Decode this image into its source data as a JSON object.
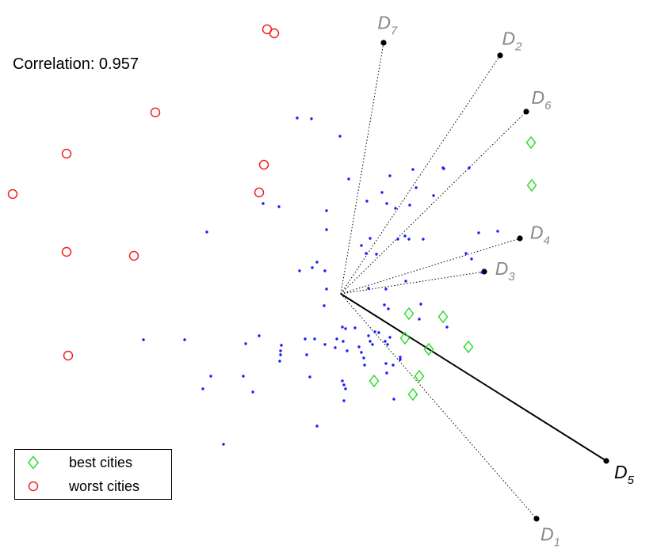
{
  "correlation_text": "Correlation: 0.957",
  "legend": {
    "best_label": "best cities",
    "worst_label": "worst cities"
  },
  "colors": {
    "points": "#1a1aff",
    "best": "#33dd33",
    "worst": "#ee2222",
    "axis_text": "#888888",
    "highlight_axis": "#000000"
  },
  "chart_data": {
    "type": "scatter",
    "description_note": "",
    "annotation": "Correlation: 0.957",
    "origin": [
      0,
      0
    ],
    "axes": [
      {
        "label": "D",
        "sub": "1",
        "end": [
          247,
          -284
        ],
        "highlight": false
      },
      {
        "label": "D",
        "sub": "2",
        "end": [
          201,
          301
        ],
        "highlight": false
      },
      {
        "label": "D",
        "sub": "3",
        "end": [
          181,
          28
        ],
        "highlight": false
      },
      {
        "label": "D",
        "sub": "4",
        "end": [
          226,
          70
        ],
        "highlight": false
      },
      {
        "label": "D",
        "sub": "5",
        "end": [
          335,
          -211
        ],
        "highlight": true
      },
      {
        "label": "D",
        "sub": "6",
        "end": [
          234,
          230
        ],
        "highlight": false
      },
      {
        "label": "D",
        "sub": "7",
        "end": [
          54,
          317
        ],
        "highlight": false
      }
    ],
    "series": [
      {
        "name": "best cities",
        "marker": "diamond",
        "points": [
          [
            240,
            191
          ],
          [
            241,
            137
          ],
          [
            86,
            -25
          ],
          [
            129,
            -29
          ],
          [
            81,
            -56
          ],
          [
            111,
            -70
          ],
          [
            161,
            -67
          ],
          [
            99,
            -104
          ],
          [
            42,
            -110
          ],
          [
            91,
            -127
          ]
        ]
      },
      {
        "name": "worst cities",
        "marker": "circle",
        "points": [
          [
            -93,
            334
          ],
          [
            -84,
            329
          ],
          [
            -234,
            229
          ],
          [
            -346,
            177
          ],
          [
            -97,
            163
          ],
          [
            -103,
            128
          ],
          [
            -414,
            126
          ],
          [
            -346,
            53
          ],
          [
            -261,
            48
          ],
          [
            -344,
            -78
          ]
        ]
      },
      {
        "name": "",
        "marker": "dot",
        "points": [
          [
            -55,
            222
          ],
          [
            -37,
            221
          ],
          [
            -1,
            199
          ],
          [
            10,
            145
          ],
          [
            62,
            149
          ],
          [
            91,
            157
          ],
          [
            129,
            159
          ],
          [
            130,
            158
          ],
          [
            162,
            159
          ],
          [
            -98,
            114
          ],
          [
            -78,
            110
          ],
          [
            -18,
            105
          ],
          [
            33,
            117
          ],
          [
            52,
            128
          ],
          [
            58,
            114
          ],
          [
            69,
            108
          ],
          [
            87,
            112
          ],
          [
            95,
            134
          ],
          [
            117,
            124
          ],
          [
            -169,
            78
          ],
          [
            -18,
            81
          ],
          [
            26,
            61
          ],
          [
            37,
            70
          ],
          [
            72,
            69
          ],
          [
            81,
            73
          ],
          [
            86,
            69
          ],
          [
            32,
            51
          ],
          [
            45,
            50
          ],
          [
            -30,
            40
          ],
          [
            -36,
            33
          ],
          [
            -20,
            29
          ],
          [
            -52,
            29
          ],
          [
            -18,
            6
          ],
          [
            -21,
            -15
          ],
          [
            104,
            69
          ],
          [
            174,
            77
          ],
          [
            198,
            79
          ],
          [
            165,
            44
          ],
          [
            178,
            27
          ],
          [
            158,
            51
          ],
          [
            82,
            16
          ],
          [
            35,
            7
          ],
          [
            57,
            6
          ],
          [
            55,
            -14
          ],
          [
            60,
            -19
          ],
          [
            101,
            -13
          ],
          [
            99,
            -32
          ],
          [
            134,
            -42
          ],
          [
            -249,
            -58
          ],
          [
            -197,
            -58
          ],
          [
            -33,
            -57
          ],
          [
            -45,
            -57
          ],
          [
            -20,
            -64
          ],
          [
            -5,
            -57
          ],
          [
            -7,
            -68
          ],
          [
            3,
            -60
          ],
          [
            2,
            -42
          ],
          [
            6,
            -44
          ],
          [
            8,
            -72
          ],
          [
            18,
            -43
          ],
          [
            23,
            -67
          ],
          [
            26,
            -74
          ],
          [
            29,
            -81
          ],
          [
            30,
            -90
          ],
          [
            35,
            -53
          ],
          [
            37,
            -60
          ],
          [
            40,
            -64
          ],
          [
            43,
            -48
          ],
          [
            48,
            -49
          ],
          [
            56,
            -60
          ],
          [
            57,
            -88
          ],
          [
            58,
            -100
          ],
          [
            59,
            -64
          ],
          [
            62,
            -55
          ],
          [
            66,
            -90
          ],
          [
            75,
            -80
          ],
          [
            75,
            -83
          ],
          [
            -103,
            -53
          ],
          [
            -120,
            -63
          ],
          [
            -75,
            -65
          ],
          [
            -76,
            -72
          ],
          [
            -76,
            -77
          ],
          [
            -77,
            -85
          ],
          [
            -43,
            -77
          ],
          [
            -123,
            -104
          ],
          [
            -164,
            -104
          ],
          [
            -39,
            -105
          ],
          [
            -111,
            -124
          ],
          [
            -174,
            -120
          ],
          [
            2,
            -110
          ],
          [
            4,
            -115
          ],
          [
            6,
            -120
          ],
          [
            4,
            -135
          ],
          [
            67,
            -133
          ],
          [
            -30,
            -167
          ],
          [
            -148,
            -190
          ]
        ]
      }
    ]
  }
}
